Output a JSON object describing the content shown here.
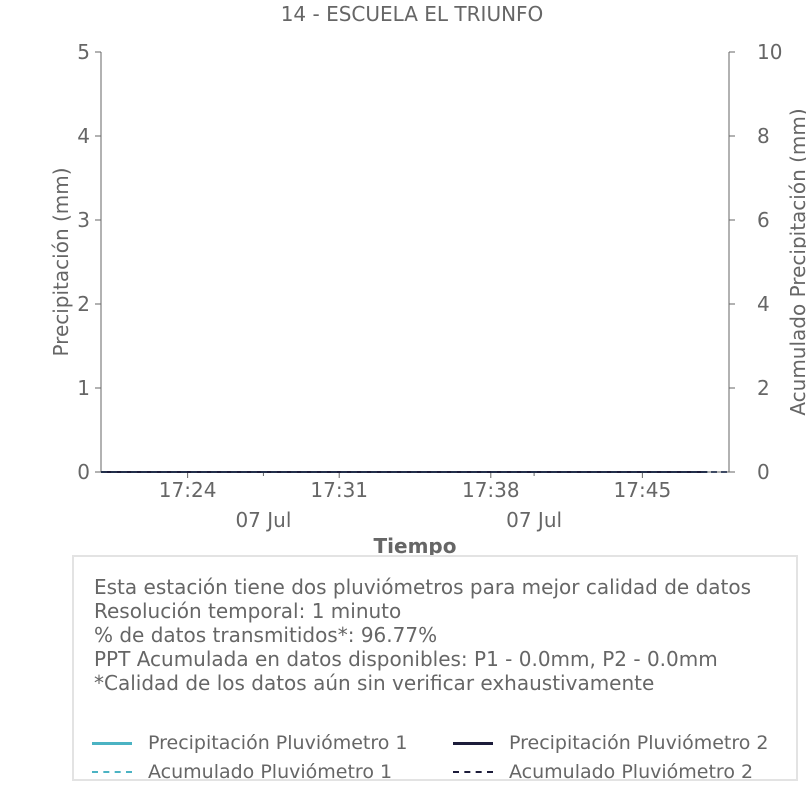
{
  "chart_data": {
    "type": "line",
    "title": "14 - ESCUELA EL TRIUNFO",
    "xlabel": "Tiempo",
    "ylabel": "Precipitación (mm)",
    "y2label": "Acumulado Precipitación (mm)",
    "ylim": [
      0,
      5
    ],
    "y2lim": [
      0,
      10
    ],
    "yticks": [
      "0",
      "1",
      "2",
      "3",
      "4",
      "5"
    ],
    "y2ticks": [
      "0",
      "2",
      "4",
      "6",
      "8",
      "10"
    ],
    "xticks": [
      "17:24",
      "17:31",
      "17:38",
      "17:45"
    ],
    "xticks_secondary": [
      "07 Jul",
      "07 Jul"
    ],
    "xlim": [
      "17:20",
      "17:49"
    ],
    "grid": false,
    "series": [
      {
        "name": "Precipitación Pluviómetro 1",
        "color": "#4bb3c3",
        "style": "solid",
        "axis": "left",
        "x": [
          "17:20",
          "17:24",
          "17:31",
          "17:38",
          "17:45",
          "17:48"
        ],
        "values": [
          0,
          0,
          0,
          0,
          0,
          0
        ]
      },
      {
        "name": "Precipitación Pluviómetro 2",
        "color": "#1c1c3a",
        "style": "solid",
        "axis": "left",
        "x": [
          "17:20",
          "17:24",
          "17:31",
          "17:38",
          "17:45",
          "17:48"
        ],
        "values": [
          0,
          0,
          0,
          0,
          0,
          0
        ]
      },
      {
        "name": "Acumulado Pluviómetro 1",
        "color": "#4bb3c3",
        "style": "dashed",
        "axis": "right",
        "x": [
          "17:20",
          "17:24",
          "17:31",
          "17:38",
          "17:45",
          "17:49"
        ],
        "values": [
          0,
          0,
          0,
          0,
          0,
          0
        ]
      },
      {
        "name": "Acumulado Pluviómetro 2",
        "color": "#1c1c3a",
        "style": "dashed",
        "axis": "right",
        "x": [
          "17:20",
          "17:24",
          "17:31",
          "17:38",
          "17:45",
          "17:49"
        ],
        "values": [
          0,
          0,
          0,
          0,
          0,
          0
        ]
      }
    ]
  },
  "info": {
    "lines": [
      "Esta estación tiene dos pluviómetros para mejor calidad de datos",
      "Resolución temporal: 1 minuto",
      "% de datos transmitidos*: 96.77%",
      "PPT Acumulada en datos disponibles: P1 - 0.0mm, P2 - 0.0mm",
      "*Calidad de los datos aún sin verificar exhaustivamente"
    ]
  }
}
